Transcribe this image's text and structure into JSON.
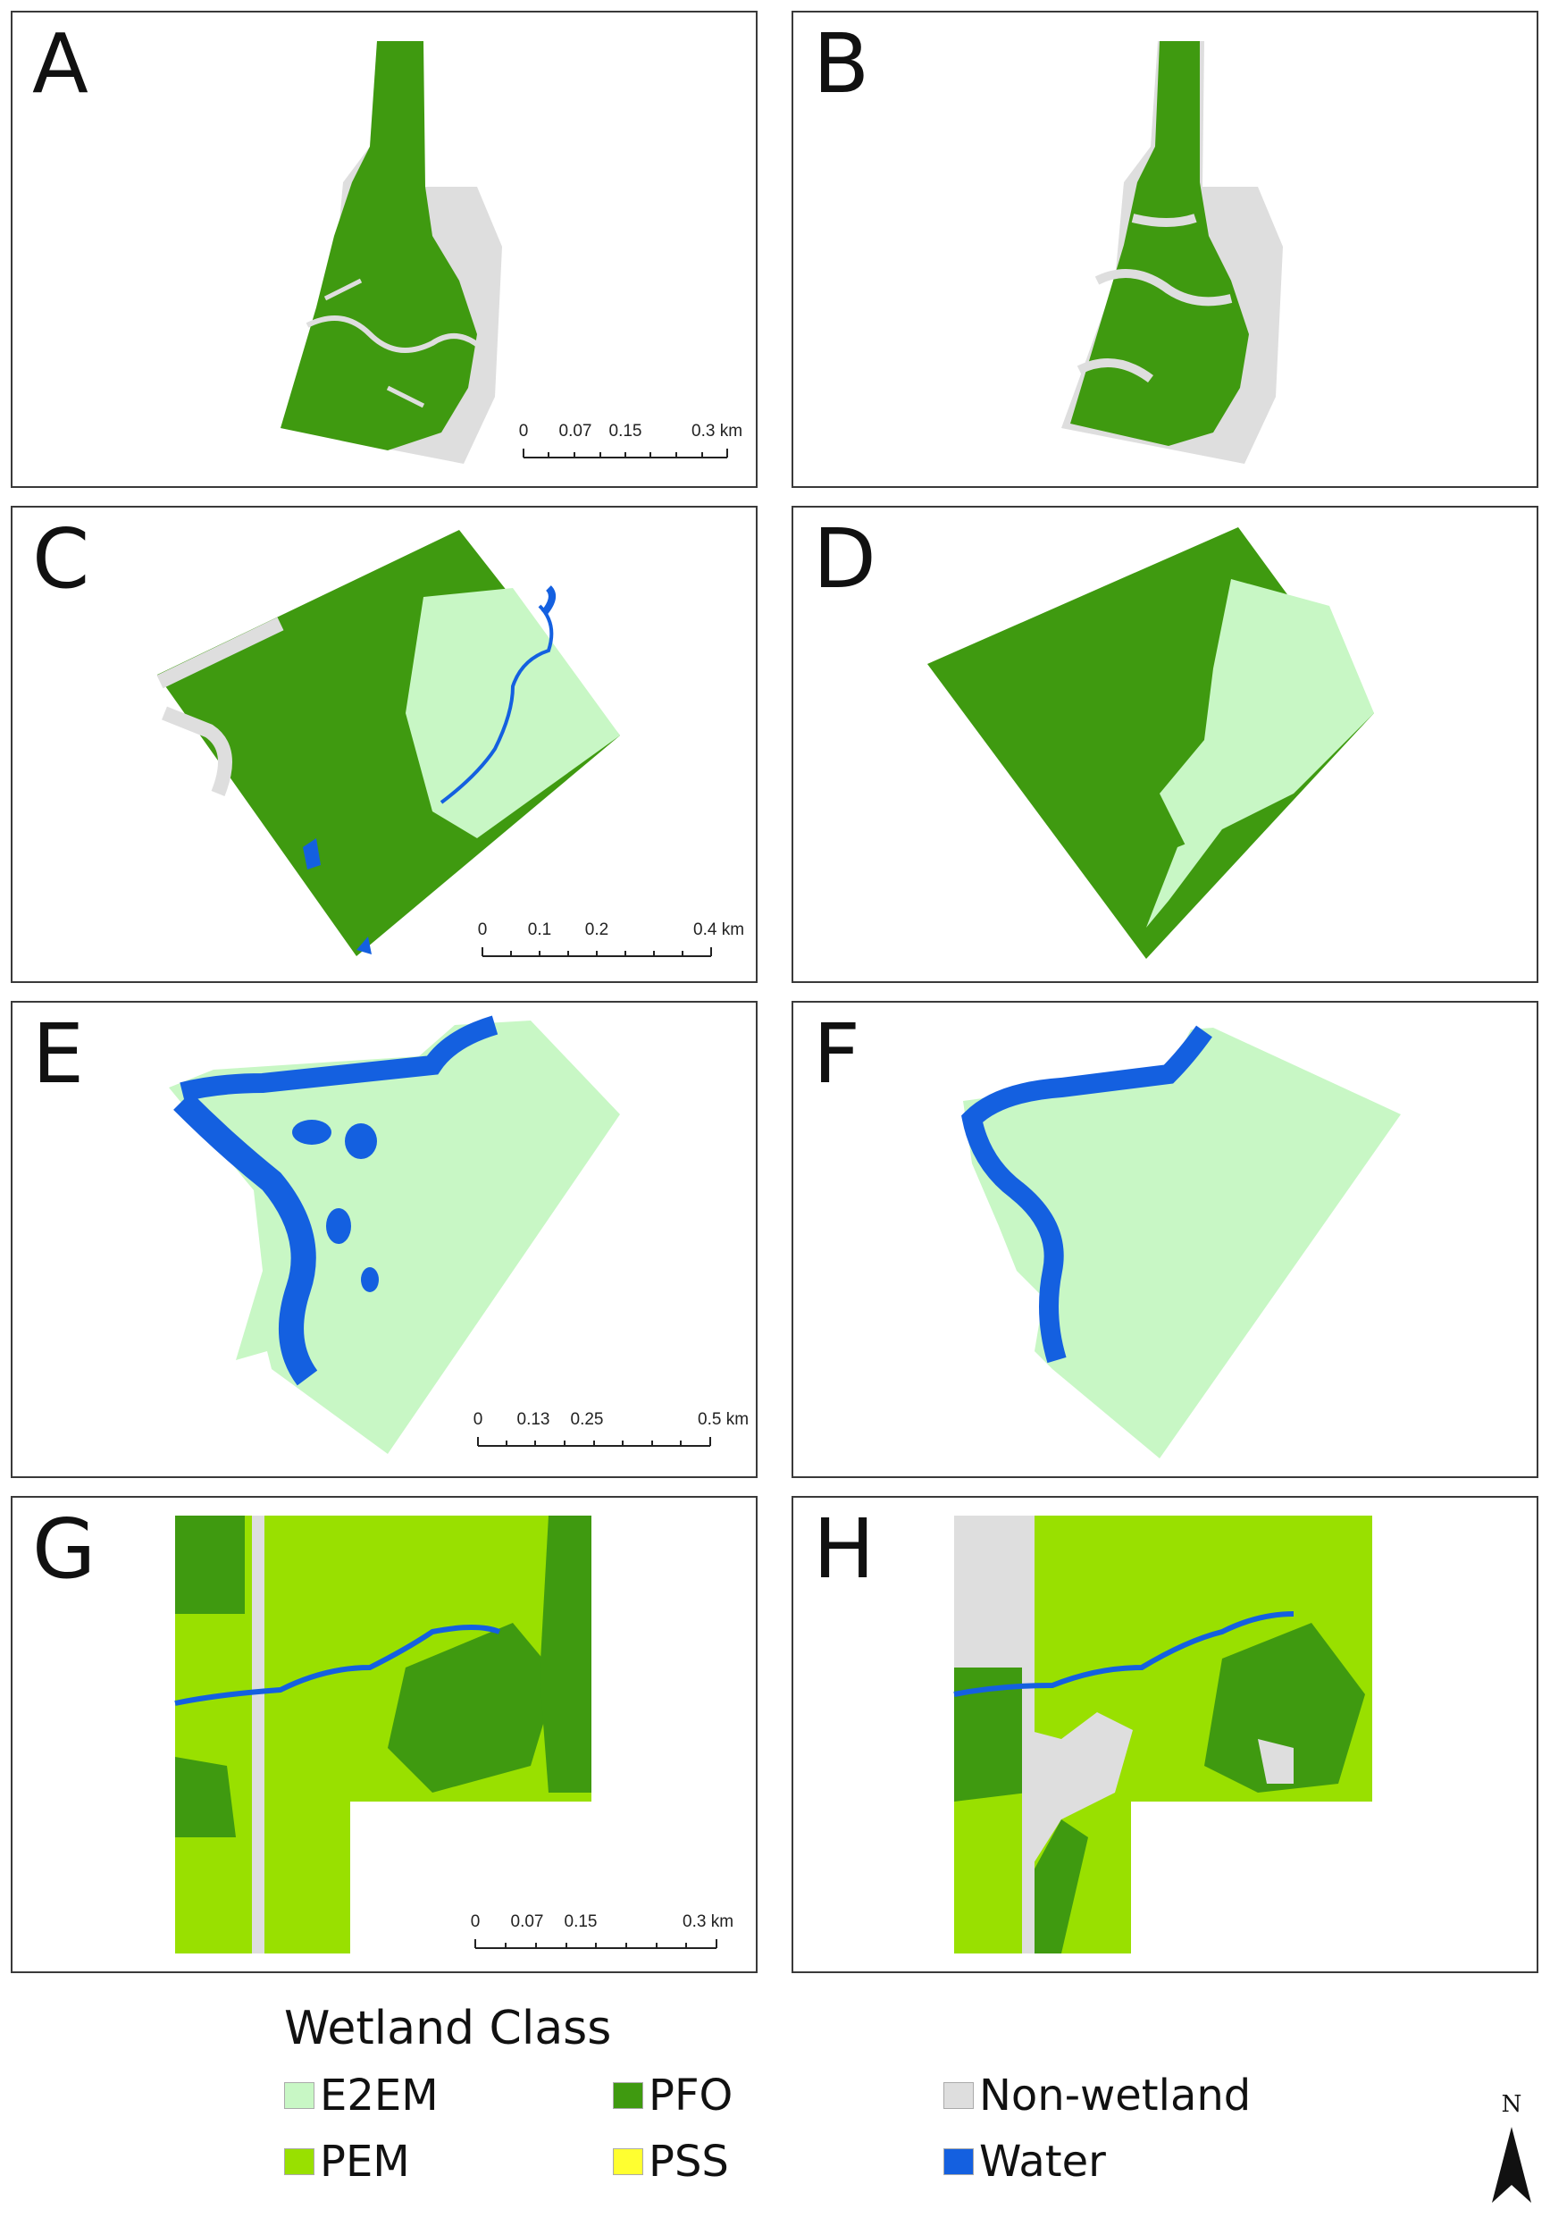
{
  "panels": [
    {
      "letter": "A",
      "scale": {
        "labels": [
          "0",
          "0.07",
          "0.15",
          "0.3 km"
        ]
      }
    },
    {
      "letter": "B"
    },
    {
      "letter": "C",
      "scale": {
        "labels": [
          "0",
          "0.1",
          "0.2",
          "0.4 km"
        ]
      }
    },
    {
      "letter": "D"
    },
    {
      "letter": "E",
      "scale": {
        "labels": [
          "0",
          "0.13",
          "0.25",
          "0.5 km"
        ]
      }
    },
    {
      "letter": "F"
    },
    {
      "letter": "G",
      "scale": {
        "labels": [
          "0",
          "0.07",
          "0.15",
          "0.3 km"
        ]
      }
    },
    {
      "letter": "H"
    }
  ],
  "legend": {
    "title": "Wetland Class",
    "items": [
      {
        "label": "E2EM",
        "color": "#c8f7c5",
        "icon": "e2em-swatch"
      },
      {
        "label": "PFO",
        "color": "#3f9a10",
        "icon": "pfo-swatch"
      },
      {
        "label": "Non-wetland",
        "color": "#dedede",
        "icon": "non-wetland-swatch"
      },
      {
        "label": "PEM",
        "color": "#99e000",
        "icon": "pem-swatch"
      },
      {
        "label": "PSS",
        "color": "#ffff30",
        "icon": "pss-swatch"
      },
      {
        "label": "Water",
        "color": "#1460e0",
        "icon": "water-swatch"
      }
    ]
  },
  "north_arrow": {
    "label": "N",
    "icon": "north-arrow-icon"
  }
}
